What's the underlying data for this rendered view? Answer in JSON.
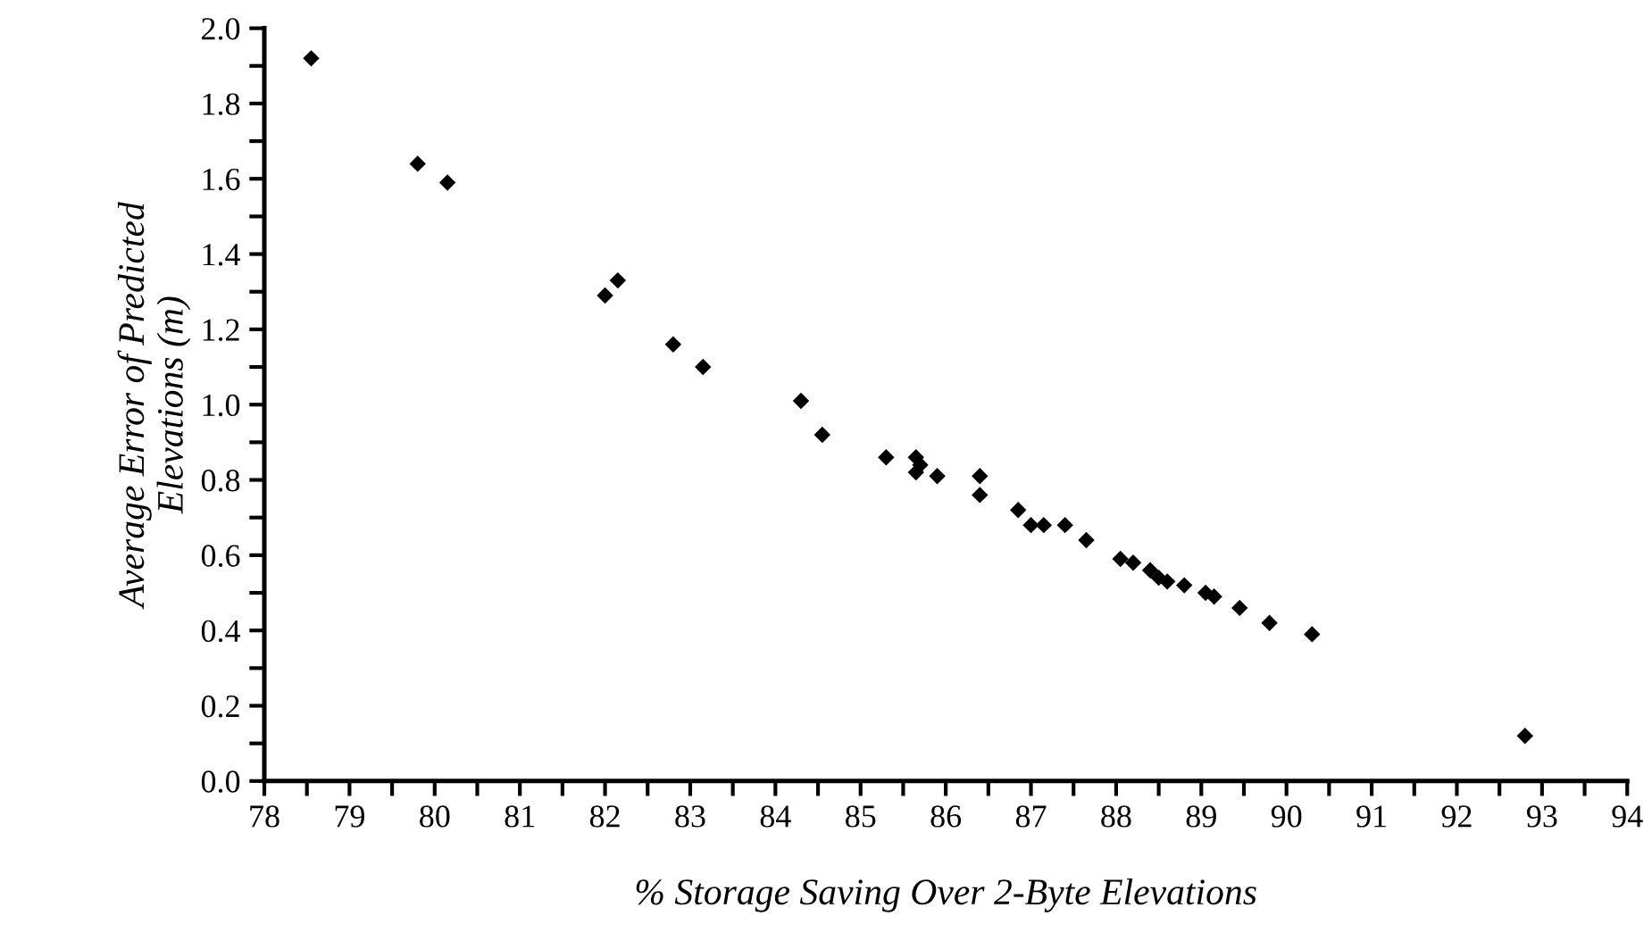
{
  "chart_data": {
    "type": "scatter",
    "xlabel": "% Storage Saving Over 2-Byte Elevations",
    "ylabel": "Average Error of Predicted\nElevations (m)",
    "x": [
      78.55,
      79.8,
      80.15,
      82.0,
      82.15,
      82.8,
      83.15,
      84.3,
      84.55,
      85.3,
      85.65,
      85.65,
      85.7,
      85.9,
      86.4,
      86.4,
      86.85,
      87.0,
      87.15,
      87.4,
      87.65,
      88.05,
      88.2,
      88.4,
      88.5,
      88.6,
      88.8,
      89.05,
      89.15,
      89.45,
      89.8,
      90.3,
      92.8
    ],
    "series": [
      {
        "color": "#000000",
        "values": [
          1.92,
          1.64,
          1.59,
          1.29,
          1.33,
          1.16,
          1.1,
          1.01,
          0.92,
          0.86,
          0.86,
          0.82,
          0.84,
          0.81,
          0.81,
          0.76,
          0.72,
          0.68,
          0.68,
          0.68,
          0.64,
          0.59,
          0.58,
          0.56,
          0.54,
          0.53,
          0.52,
          0.5,
          0.49,
          0.46,
          0.42,
          0.39,
          0.12
        ]
      }
    ],
    "marker": "diamond",
    "grid": false,
    "legend": false,
    "xlim": [
      78,
      94
    ],
    "ylim": [
      0,
      2.0
    ],
    "xticks": [
      78,
      {
        "value": 78.5,
        "label": null
      },
      79,
      {
        "value": 79.5,
        "label": null
      },
      80,
      {
        "value": 80.5,
        "label": null
      },
      81,
      {
        "value": 81.5,
        "label": null
      },
      82,
      {
        "value": 82.5,
        "label": null
      },
      83,
      {
        "value": 83.5,
        "label": null
      },
      84,
      {
        "value": 84.5,
        "label": null
      },
      85,
      {
        "value": 85.5,
        "label": null
      },
      86,
      {
        "value": 86.5,
        "label": null
      },
      87,
      {
        "value": 87.5,
        "label": null
      },
      88,
      {
        "value": 88.5,
        "label": null
      },
      89,
      {
        "value": 89.5,
        "label": null
      },
      90,
      {
        "value": 90.5,
        "label": null
      },
      91,
      {
        "value": 91.5,
        "label": null
      },
      92,
      {
        "value": 92.5,
        "label": null
      },
      93,
      {
        "value": 93.5,
        "label": null
      },
      94
    ],
    "yticks": [
      {
        "value": 0,
        "label": "0.0"
      },
      {
        "value": 0.1,
        "label": null
      },
      {
        "value": 0.2,
        "label": "0.2"
      },
      {
        "value": 0.3,
        "label": null
      },
      {
        "value": 0.4,
        "label": "0.4"
      },
      {
        "value": 0.5,
        "label": null
      },
      {
        "value": 0.6,
        "label": "0.6"
      },
      {
        "value": 0.7,
        "label": null
      },
      {
        "value": 0.8,
        "label": "0.8"
      },
      {
        "value": 0.9,
        "label": null
      },
      {
        "value": 1.0,
        "label": "1.0"
      },
      {
        "value": 1.1,
        "label": null
      },
      {
        "value": 1.2,
        "label": "1.2"
      },
      {
        "value": 1.3,
        "label": null
      },
      {
        "value": 1.4,
        "label": "1.4"
      },
      {
        "value": 1.5,
        "label": null
      },
      {
        "value": 1.6,
        "label": "1.6"
      },
      {
        "value": 1.7,
        "label": null
      },
      {
        "value": 1.8,
        "label": "1.8"
      },
      {
        "value": 1.9,
        "label": null
      },
      {
        "value": 2.0,
        "label": "2.0"
      }
    ]
  }
}
